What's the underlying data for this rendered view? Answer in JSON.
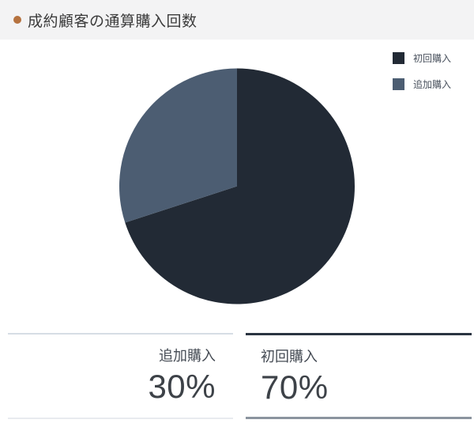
{
  "header": {
    "title": "成約顧客の通算購入回数",
    "bullet_color": "#b5723f",
    "background": "#f3f3f4"
  },
  "chart_data": {
    "type": "pie",
    "title": "成約顧客の通算購入回数",
    "categories": [
      "初回購入",
      "追加購入"
    ],
    "values": [
      70,
      30
    ],
    "unit": "%",
    "colors": [
      "#222a35",
      "#4c5d72"
    ],
    "start_angle_deg_from_top": 0,
    "direction": "clockwise",
    "legend_position": "top-right"
  },
  "legend": {
    "items": [
      {
        "label": "初回購入",
        "color": "#222a35"
      },
      {
        "label": "追加購入",
        "color": "#4c5d72"
      }
    ]
  },
  "stats": [
    {
      "label": "追加購入",
      "value": "30%",
      "top_border_color": "#d6dde5",
      "bottom_border_color": "#e8ebef"
    },
    {
      "label": "初回購入",
      "value": "70%",
      "top_border_color": "#2a3441",
      "bottom_border_color": "#8b949f"
    }
  ]
}
